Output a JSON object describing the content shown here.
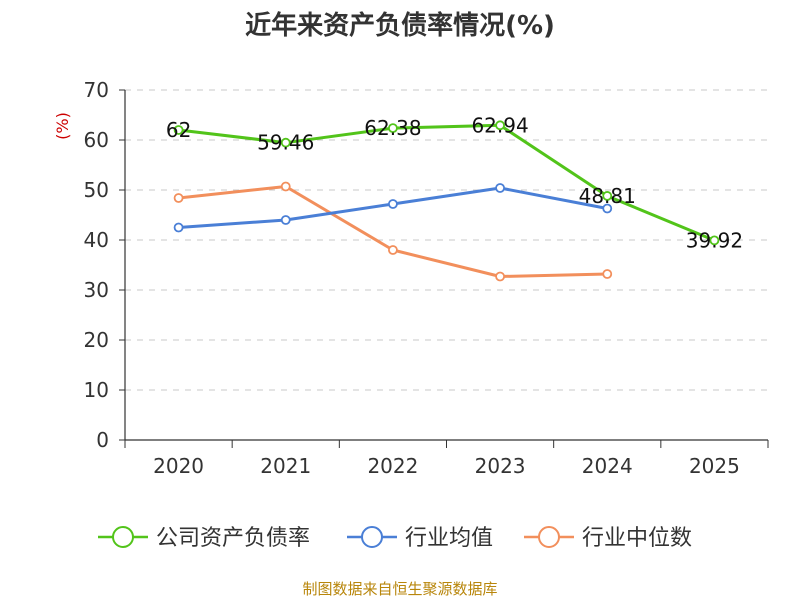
{
  "chart_data": {
    "type": "line",
    "title": "近年来资产负债率情况(%)",
    "ylabel": "(%)",
    "xlabel": "",
    "categories": [
      "2020",
      "2021",
      "2022",
      "2023",
      "2024",
      "2025"
    ],
    "ylim": [
      0,
      70
    ],
    "yticks": [
      0,
      10,
      20,
      30,
      40,
      50,
      60,
      70
    ],
    "grid": true,
    "legend_position": "bottom",
    "series": [
      {
        "name": "公司资产负债率",
        "color": "#52c41a",
        "values": [
          62,
          59.46,
          62.38,
          62.94,
          48.81,
          39.92
        ],
        "labels": [
          "62",
          "59.46",
          "62.38",
          "62.94",
          "48.81",
          "39.92"
        ]
      },
      {
        "name": "行业均值",
        "color": "#4a7fd6",
        "values": [
          42.5,
          44.0,
          47.2,
          50.4,
          46.3,
          null
        ]
      },
      {
        "name": "行业中位数",
        "color": "#f28f5c",
        "values": [
          48.4,
          50.7,
          38.0,
          32.7,
          33.2,
          null
        ]
      }
    ],
    "source": "制图数据来自恒生聚源数据库"
  }
}
